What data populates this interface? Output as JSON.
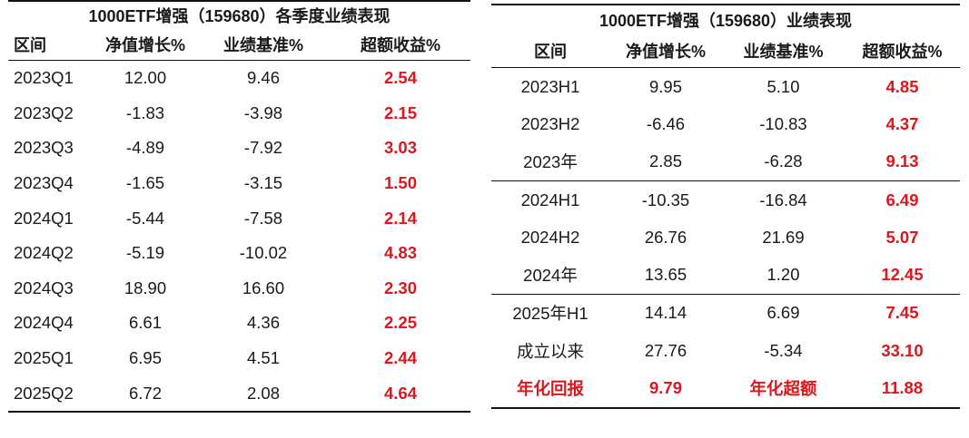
{
  "quarterly": {
    "title": "1000ETF增强（159680）各季度业绩表现",
    "headers": [
      "区间",
      "净值增长%",
      "业绩基准%",
      "超额收益%"
    ],
    "rows": [
      [
        "2023Q1",
        "12.00",
        "9.46",
        "2.54"
      ],
      [
        "2023Q2",
        "-1.83",
        "-3.98",
        "2.15"
      ],
      [
        "2023Q3",
        "-4.89",
        "-7.92",
        "3.03"
      ],
      [
        "2023Q4",
        "-1.65",
        "-3.15",
        "1.50"
      ],
      [
        "2024Q1",
        "-5.44",
        "-7.58",
        "2.14"
      ],
      [
        "2024Q2",
        "-5.19",
        "-10.02",
        "4.83"
      ],
      [
        "2024Q3",
        "18.90",
        "16.60",
        "2.30"
      ],
      [
        "2024Q4",
        "6.61",
        "4.36",
        "2.25"
      ],
      [
        "2025Q1",
        "6.95",
        "4.51",
        "2.44"
      ],
      [
        "2025Q2",
        "6.72",
        "2.08",
        "4.64"
      ]
    ]
  },
  "summary": {
    "title": "1000ETF增强（159680）业绩表现",
    "headers": [
      "区间",
      "净值增长%",
      "业绩基准%",
      "超额收益%"
    ],
    "rows": [
      [
        "2023H1",
        "9.95",
        "5.10",
        "4.85"
      ],
      [
        "2023H2",
        "-6.46",
        "-10.83",
        "4.37"
      ],
      [
        "2023年",
        "2.85",
        "-6.28",
        "9.13"
      ],
      [
        "2024H1",
        "-10.35",
        "-16.84",
        "6.49"
      ],
      [
        "2024H2",
        "26.76",
        "21.69",
        "5.07"
      ],
      [
        "2024年",
        "13.65",
        "1.20",
        "12.45"
      ],
      [
        "2025年H1",
        "14.14",
        "6.69",
        "7.45"
      ],
      [
        "成立以来",
        "27.76",
        "-5.34",
        "33.10"
      ]
    ],
    "footer": [
      "年化回报",
      "9.79",
      "年化超额",
      "11.88"
    ]
  },
  "colors": {
    "accent_red": "#e0161c",
    "rule": "#111111"
  }
}
